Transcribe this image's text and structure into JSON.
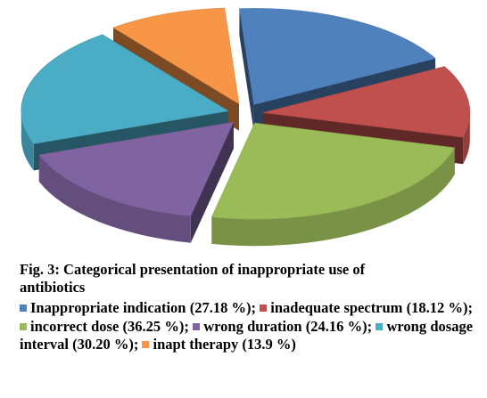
{
  "chart_data": {
    "type": "pie",
    "style": "3d-exploded",
    "categories": [
      "Inappropriate indication",
      "inadequate spectrum",
      "incorrect dose",
      "wrong duration",
      "wrong dosage interval",
      "inapt therapy"
    ],
    "values": [
      27.18,
      18.12,
      36.25,
      24.16,
      30.2,
      13.9
    ],
    "colors": [
      "#4f81bd",
      "#c0504d",
      "#9bbb59",
      "#8064a2",
      "#4bacc6",
      "#f79646"
    ],
    "caption_line1": "Fig. 3: Categorical presentation of inappropriate use of",
    "caption_line2": "antibiotics",
    "legend_labels": [
      "Inappropriate indication (27.18 %);",
      "inadequate spectrum (18.12 %);",
      "incorrect dose (36.25 %);",
      "wrong duration (24.16 %);",
      "wrong dosage interval (30.20 %);",
      "inapt therapy (13.9 %)"
    ]
  }
}
